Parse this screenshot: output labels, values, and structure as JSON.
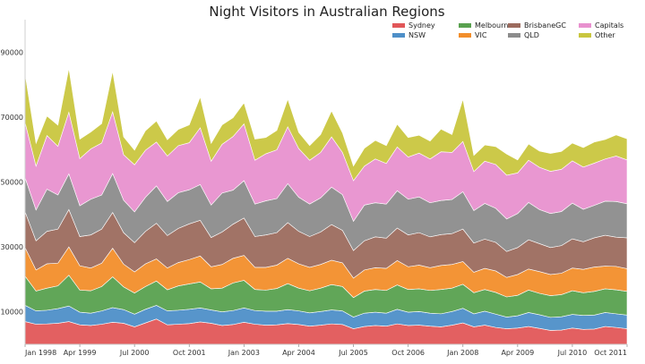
{
  "chart_data": {
    "type": "area",
    "stacked": true,
    "title": "Night Visitors in Australian Regions",
    "xlabel": "",
    "ylabel": "",
    "ylim": [
      0,
      100000
    ],
    "yticks": [
      10000,
      30000,
      50000,
      70000,
      90000
    ],
    "xticks": [
      {
        "label": "Jan 1998",
        "q": 0
      },
      {
        "label": "Apr 1999",
        "q": 5
      },
      {
        "label": "Jul 2000",
        "q": 10
      },
      {
        "label": "Oct 2001",
        "q": 15
      },
      {
        "label": "Jan 2003",
        "q": 20
      },
      {
        "label": "Apr 2004",
        "q": 25
      },
      {
        "label": "Jul 2005",
        "q": 30
      },
      {
        "label": "Oct 2006",
        "q": 35
      },
      {
        "label": "Jan 2008",
        "q": 40
      },
      {
        "label": "Apr 2009",
        "q": 45
      },
      {
        "label": "Jul 2010",
        "q": 50
      },
      {
        "label": "Oct 2011",
        "q": 55
      }
    ],
    "grid": false,
    "legend_position": "top-right",
    "legend_columns": 4,
    "x_frequency": "quarterly",
    "x_start": "1998Q1",
    "series": [
      {
        "name": "Sydney",
        "color": "#e15759",
        "values": [
          7000,
          6200,
          6300,
          6500,
          7000,
          6000,
          5800,
          6200,
          6800,
          6500,
          5400,
          6600,
          7800,
          6000,
          6200,
          6400,
          6900,
          6500,
          5800,
          6100,
          6800,
          6200,
          5900,
          6000,
          6400,
          6100,
          5600,
          5900,
          6300,
          6100,
          4800,
          5500,
          5800,
          5600,
          6300,
          5800,
          5900,
          5600,
          5400,
          5900,
          6600,
          5400,
          5900,
          5200,
          4800,
          5000,
          5500,
          4900,
          4300,
          4400,
          5000,
          4600,
          4700,
          5500,
          5200,
          4800
        ]
      },
      {
        "name": "NSW",
        "color": "#4e8fc8",
        "values": [
          5000,
          4100,
          4200,
          4500,
          4800,
          3900,
          3800,
          4100,
          4500,
          4200,
          3900,
          4200,
          4200,
          4300,
          4300,
          4400,
          4300,
          4100,
          4200,
          4300,
          4400,
          4200,
          4300,
          4200,
          4300,
          4200,
          4100,
          4200,
          4300,
          4200,
          3600,
          4100,
          4100,
          4000,
          4500,
          4100,
          4200,
          4000,
          4000,
          4200,
          4500,
          4000,
          4300,
          4100,
          3600,
          3800,
          4300,
          4200,
          4000,
          4100,
          4200,
          4300,
          4300,
          4300,
          4200,
          4200
        ]
      },
      {
        "name": "Melbourne",
        "color": "#59a14f",
        "values": [
          9000,
          6100,
          6800,
          7000,
          9500,
          6800,
          6900,
          7500,
          9500,
          7000,
          6500,
          7000,
          7500,
          6500,
          7500,
          7800,
          8000,
          6500,
          7300,
          8500,
          8500,
          6500,
          6500,
          7000,
          8000,
          7000,
          6800,
          7200,
          7800,
          7500,
          6000,
          6800,
          7000,
          7000,
          7500,
          7000,
          7000,
          7000,
          7500,
          7200,
          7400,
          6500,
          6700,
          6700,
          6200,
          6300,
          6900,
          6600,
          6700,
          6800,
          7300,
          7000,
          7300,
          7300,
          7400,
          7300
        ]
      },
      {
        "name": "VIC",
        "color": "#f28e2b",
        "values": [
          8800,
          6500,
          7500,
          7000,
          8700,
          7500,
          7000,
          7200,
          8800,
          7000,
          6500,
          7000,
          6800,
          6700,
          7200,
          7500,
          8000,
          6800,
          7300,
          7600,
          7700,
          6800,
          7000,
          7200,
          7800,
          7500,
          7200,
          7300,
          7500,
          7300,
          6000,
          6500,
          6700,
          6800,
          7500,
          7000,
          7300,
          7000,
          7400,
          7300,
          7000,
          6300,
          6500,
          6600,
          6000,
          6400,
          6500,
          6700,
          6500,
          6600,
          7000,
          7200,
          7500,
          7000,
          7200,
          7000
        ]
      },
      {
        "name": "BrisbaneGC",
        "color": "#9c6b5e",
        "values": [
          11000,
          9000,
          10000,
          10500,
          11500,
          9000,
          10200,
          10500,
          11000,
          9700,
          9000,
          10000,
          11000,
          10000,
          10500,
          11000,
          11000,
          9000,
          10000,
          10500,
          11500,
          9500,
          10000,
          10000,
          11000,
          10000,
          9500,
          10000,
          11000,
          10000,
          8500,
          9000,
          9500,
          9300,
          10000,
          9800,
          10000,
          9500,
          9500,
          9500,
          10000,
          9000,
          9000,
          8800,
          8000,
          8300,
          9000,
          8600,
          8300,
          8500,
          9000,
          8500,
          9000,
          9500,
          9000,
          9500
        ]
      },
      {
        "name": "QLD",
        "color": "#8c8c8c",
        "values": [
          10500,
          9500,
          13000,
          10500,
          11000,
          9500,
          11000,
          10500,
          12000,
          10000,
          9500,
          10500,
          11500,
          10500,
          11000,
          10500,
          11000,
          10000,
          12000,
          10500,
          11500,
          10000,
          10500,
          10500,
          12000,
          10500,
          10000,
          10500,
          11500,
          11000,
          9000,
          11000,
          10500,
          10500,
          11500,
          11000,
          11000,
          10500,
          10500,
          10500,
          11500,
          10000,
          11000,
          10500,
          10000,
          10500,
          11500,
          10500,
          10500,
          10500,
          11000,
          10000,
          10000,
          10500,
          11000,
          10500
        ]
      },
      {
        "name": "Capitals",
        "color": "#e891cf",
        "values": [
          17000,
          13500,
          16500,
          15000,
          19000,
          14500,
          15500,
          16000,
          19000,
          14000,
          14500,
          14500,
          13500,
          14000,
          14500,
          14500,
          17500,
          13500,
          15000,
          16500,
          17500,
          13500,
          14500,
          15000,
          17500,
          15000,
          13500,
          14000,
          15500,
          13000,
          12500,
          12000,
          13500,
          12500,
          13500,
          13000,
          13500,
          13500,
          15000,
          14500,
          15500,
          12000,
          13000,
          13500,
          13500,
          12500,
          13000,
          13000,
          13000,
          13000,
          13000,
          13000,
          13000,
          13000,
          14000,
          13500
        ]
      },
      {
        "name": "Other",
        "color": "#c9c63f",
        "values": [
          15000,
          7000,
          6000,
          6500,
          13500,
          6000,
          5200,
          6000,
          12500,
          5500,
          4500,
          6000,
          6500,
          5000,
          5000,
          5500,
          9500,
          5500,
          6000,
          5800,
          6500,
          6500,
          5000,
          6000,
          8500,
          5000,
          4500,
          5500,
          8000,
          6000,
          4500,
          5500,
          5700,
          5500,
          7000,
          6000,
          5500,
          5500,
          7000,
          5500,
          13000,
          5000,
          5000,
          5500,
          6500,
          4000,
          5000,
          5000,
          5500,
          5500,
          5500,
          6000,
          6500,
          6000,
          6500,
          6500
        ]
      }
    ]
  }
}
